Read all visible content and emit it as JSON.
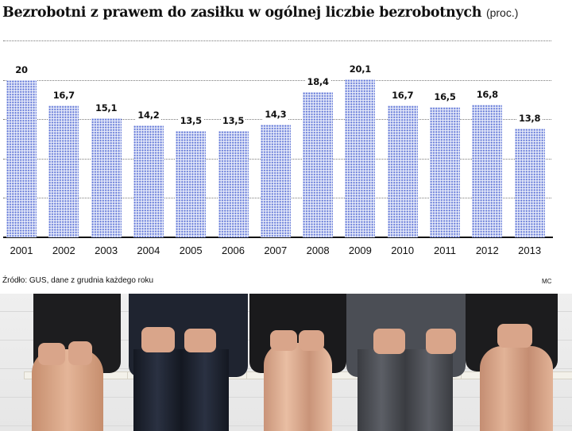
{
  "title": {
    "main": "Bezrobotni z prawem do zasiłku w ogólnej liczbie bezrobotnych",
    "unit": "(proc.)"
  },
  "chart_data": {
    "type": "bar",
    "title": "Bezrobotni z prawem do zasiłku w ogólnej liczbie bezrobotnych (proc.)",
    "xlabel": "",
    "ylabel": "proc.",
    "categories": [
      "2001",
      "2002",
      "2003",
      "2004",
      "2005",
      "2006",
      "2007",
      "2008",
      "2009",
      "2010",
      "2011",
      "2012",
      "2013"
    ],
    "values": [
      20,
      16.7,
      15.1,
      14.2,
      13.5,
      13.5,
      14.3,
      18.4,
      20.1,
      16.7,
      16.5,
      16.8,
      13.8
    ],
    "value_labels": [
      "20",
      "16,7",
      "15,1",
      "14,2",
      "13,5",
      "13,5",
      "14,3",
      "18,4",
      "20,1",
      "16,7",
      "16,5",
      "16,8",
      "13,8"
    ],
    "ylim": [
      0,
      25
    ],
    "gridlines": [
      5,
      10,
      15,
      20,
      25
    ],
    "grid": true,
    "grid_style": "dotted",
    "legend": "none",
    "bar_color": "#5d73d6",
    "bar_fill": "dotted pattern"
  },
  "footer": {
    "source": "Źródło: GUS, dane z grudnia każdego roku",
    "credit": "MC"
  },
  "photo": {
    "description": "Five people in business attire seated in a row on white chairs against a white brick wall, cropped at the shoulders"
  }
}
